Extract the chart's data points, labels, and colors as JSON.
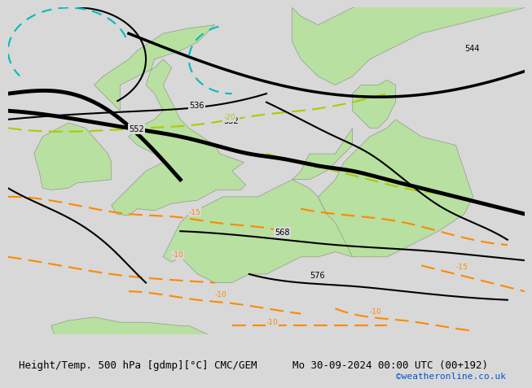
{
  "title_left": "Height/Temp. 500 hPa [gdmp][°C] CMC/GEM",
  "title_right": "Mo 30-09-2024 00:00 UTC (00+192)",
  "credit": "©weatheronline.co.uk",
  "bg_color": "#d8d8d8",
  "land_color": "#b8e0a0",
  "sea_color": "#d8d8d8",
  "figsize": [
    6.34,
    4.9
  ],
  "dpi": 100,
  "xlim": [
    -12,
    18
  ],
  "ylim": [
    43,
    62
  ],
  "title_fontsize": 9,
  "credit_fontsize": 8,
  "contour_color_black": "#000000",
  "contour_color_thick": "#000000",
  "contour_color_teal": "#00aaaa",
  "contour_color_green_dashed": "#88cc00",
  "contour_color_orange": "#ff8800"
}
